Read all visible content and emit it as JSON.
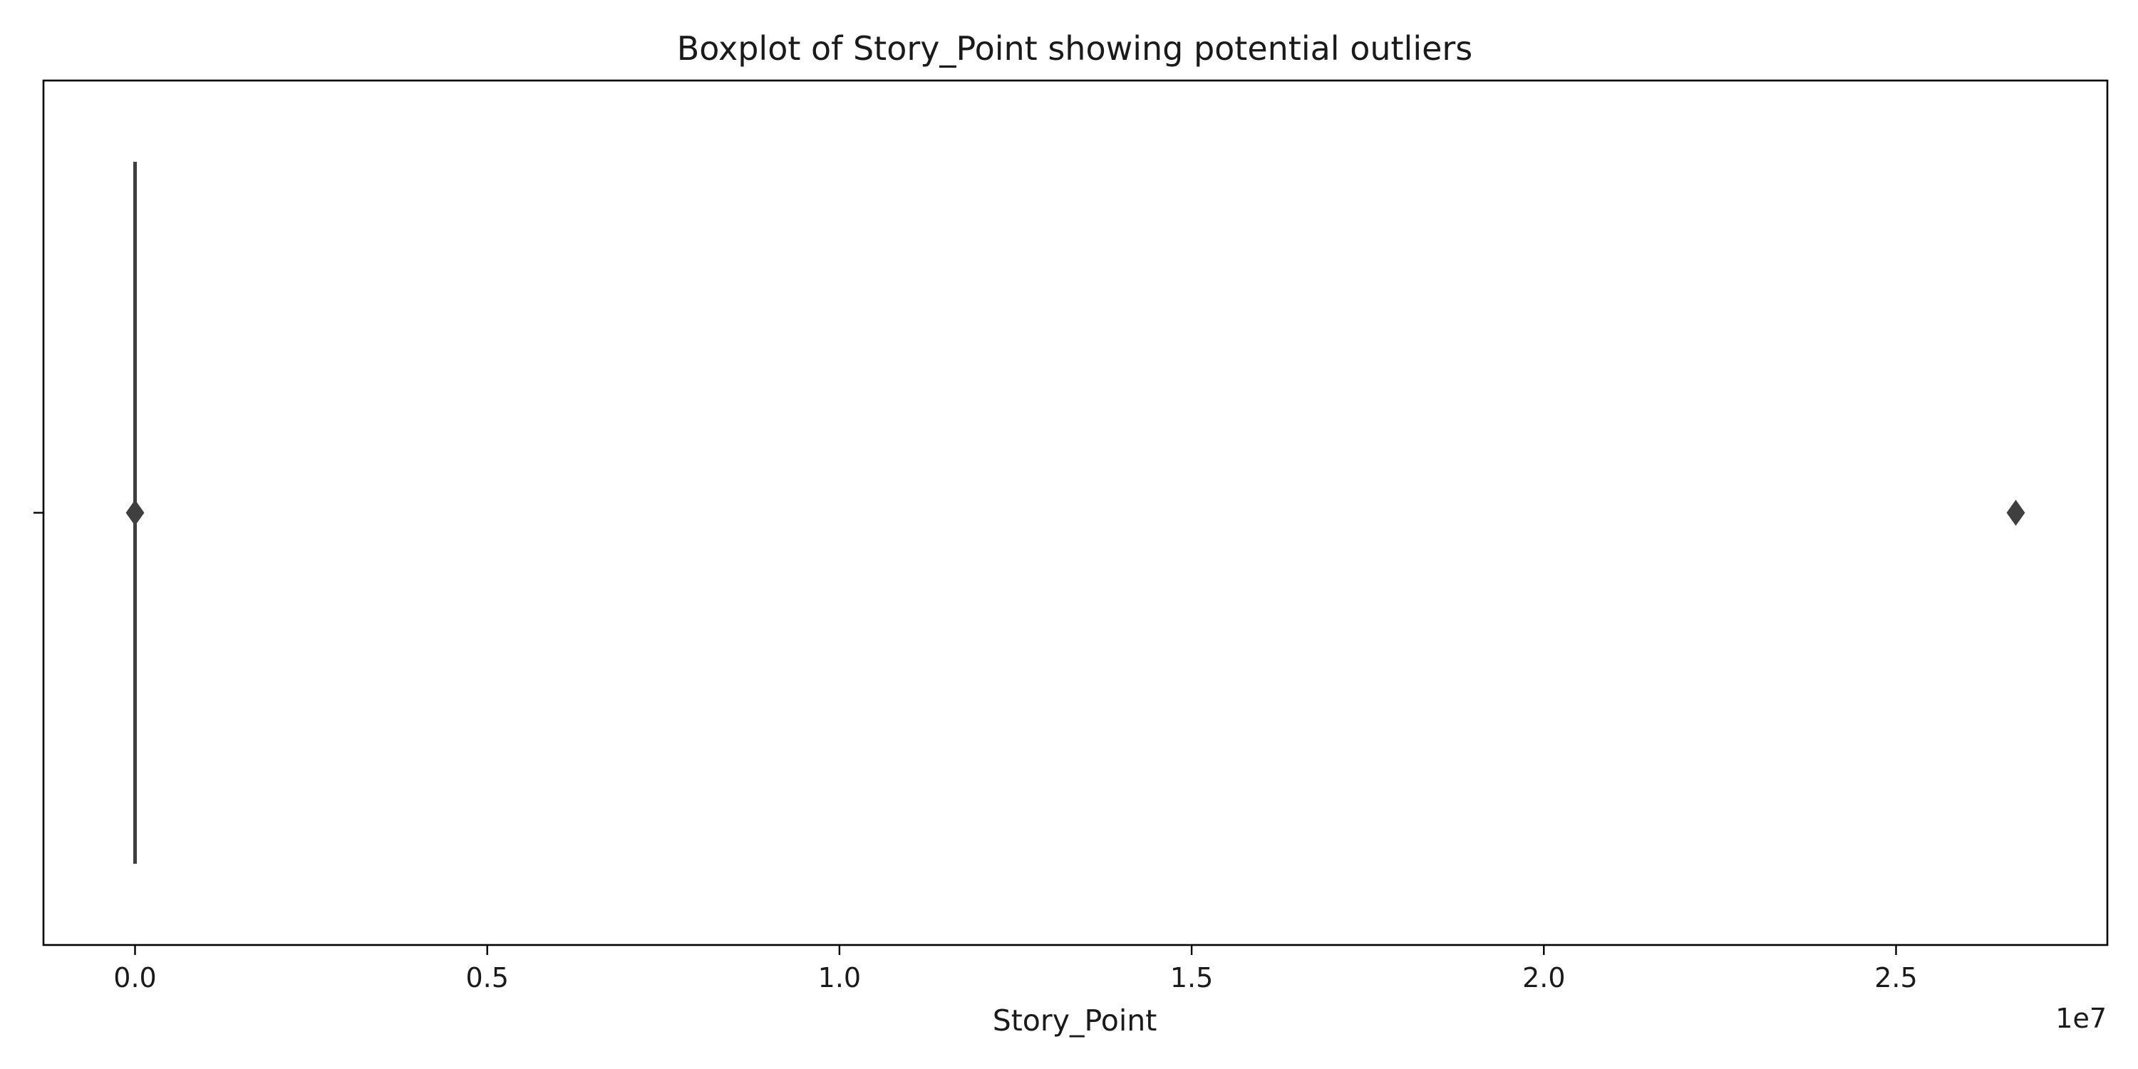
{
  "chart_data": {
    "type": "box",
    "title": "Boxplot of Story_Point showing potential outliers",
    "xlabel": "Story_Point",
    "ylabel": "",
    "x_offset_label": "1e7",
    "xlim": [
      -0.13,
      2.8
    ],
    "x_ticks": [
      {
        "value": 0.0,
        "label": "0.0"
      },
      {
        "value": 0.5,
        "label": "0.5"
      },
      {
        "value": 1.0,
        "label": "1.0"
      },
      {
        "value": 1.5,
        "label": "1.5"
      },
      {
        "value": 2.0,
        "label": "2.0"
      },
      {
        "value": 2.5,
        "label": "2.5"
      }
    ],
    "x_scale_multiplier": 10000000,
    "box": {
      "q1": 0,
      "median": 0,
      "q3": 0,
      "whisker_low": 0,
      "whisker_high": 0
    },
    "outliers": [
      0,
      26700000
    ],
    "grid": false,
    "colors": {
      "box": "#3f3f3f",
      "frame": "#000000",
      "background": "#ffffff"
    }
  }
}
